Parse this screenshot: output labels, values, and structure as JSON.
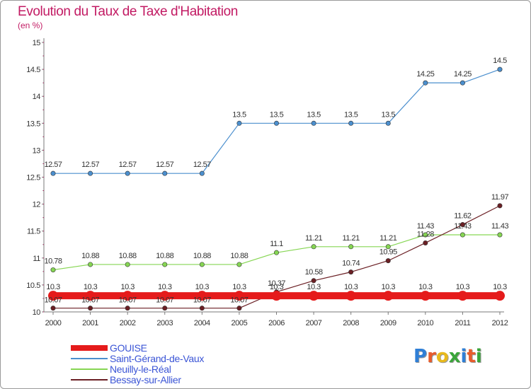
{
  "title": "Evolution du Taux de Taxe d'Habitation",
  "subtitle": "(en %)",
  "logo_text": "Proxiti",
  "logo_colors": [
    "#2f7fd6",
    "#e85c2c",
    "#e8b91c",
    "#3aa53a",
    "#2f7fd6",
    "#e85c2c",
    "#3aa53a"
  ],
  "chart_data": {
    "type": "line",
    "x": [
      "2000",
      "2001",
      "2002",
      "2003",
      "2004",
      "2005",
      "2006",
      "2007",
      "2008",
      "2009",
      "2010",
      "2011",
      "2012"
    ],
    "y_ticks": [
      "10",
      "10.5",
      "11",
      "11.5",
      "12",
      "12.5",
      "13",
      "13.5",
      "14",
      "14.5",
      "15"
    ],
    "ylim": [
      10,
      15
    ],
    "grid": false,
    "legend_position": "bottom-left",
    "series": [
      {
        "name": "GOUISE",
        "color": "#e51b1b",
        "values": [
          10.3,
          10.3,
          10.3,
          10.3,
          10.3,
          10.3,
          10.3,
          10.3,
          10.3,
          10.3,
          10.3,
          10.3,
          10.3
        ],
        "labels": [
          "10.3",
          "10.3",
          "10.3",
          "10.3",
          "10.3",
          "10.3",
          "10.3",
          "10.3",
          "10.3",
          "10.3",
          "10.3",
          "10.3",
          "10.3"
        ]
      },
      {
        "name": "Saint-Gérand-de-Vaux",
        "color": "#4b8fce",
        "values": [
          12.57,
          12.57,
          12.57,
          12.57,
          12.57,
          13.5,
          13.5,
          13.5,
          13.5,
          13.5,
          14.25,
          14.25,
          14.5
        ],
        "labels": [
          "12.57",
          "12.57",
          "12.57",
          "12.57",
          "12.57",
          "13.5",
          "13.5",
          "13.5",
          "13.5",
          "13.5",
          "14.25",
          "14.25",
          "14.5"
        ]
      },
      {
        "name": "Neuilly-le-Réal",
        "color": "#86d653",
        "values": [
          10.78,
          10.88,
          10.88,
          10.88,
          10.88,
          10.88,
          11.1,
          11.21,
          11.21,
          11.21,
          11.43,
          11.43,
          11.43
        ],
        "labels": [
          "10.78",
          "10.88",
          "10.88",
          "10.88",
          "10.88",
          "10.88",
          "11.1",
          "11.21",
          "11.21",
          "11.21",
          "11.43",
          "11.43",
          "11.43"
        ]
      },
      {
        "name": "Bessay-sur-Allier",
        "color": "#6b1f24",
        "values": [
          10.07,
          10.07,
          10.07,
          10.07,
          10.07,
          10.07,
          10.37,
          10.58,
          10.74,
          10.95,
          11.28,
          11.62,
          11.97
        ],
        "labels": [
          "10.07",
          "10.07",
          "10.07",
          "10.07",
          "10.07",
          "10.07",
          "10.37",
          "10.58",
          "10.74",
          "10.95",
          "11.28",
          "11.62",
          "11.97"
        ]
      }
    ]
  }
}
